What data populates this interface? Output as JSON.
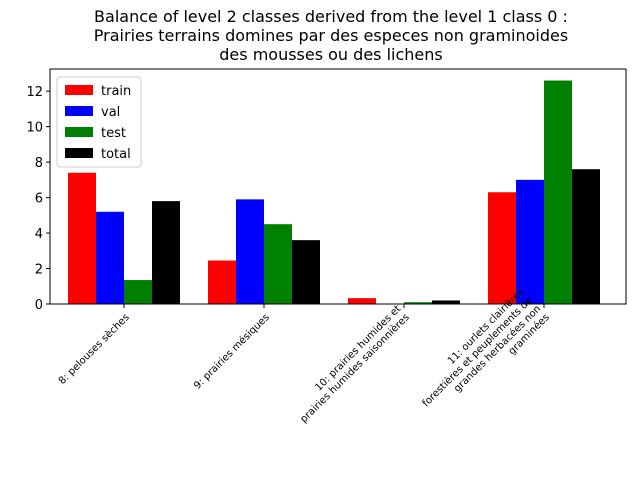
{
  "chart_data": {
    "type": "bar",
    "title_lines": [
      "Balance of level 2 classes derived from the level 1 class 0 :",
      "Prairies terrains domines par des especes non graminoides",
      "des mousses ou des lichens"
    ],
    "categories": [
      [
        "8: pelouses sèches"
      ],
      [
        "9: prairies mésiques"
      ],
      [
        "10: prairies humides et",
        "prairies humides saisonnières"
      ],
      [
        "11: ourlets clairières",
        "forestières et peuplements de",
        "grandes herbacées non",
        "graminées"
      ]
    ],
    "series": [
      {
        "name": "train",
        "color": "#ff0000",
        "values": [
          7.4,
          2.45,
          0.33,
          6.3
        ]
      },
      {
        "name": "val",
        "color": "#0000ff",
        "values": [
          5.2,
          5.9,
          0.0,
          7.0
        ]
      },
      {
        "name": "test",
        "color": "#008000",
        "values": [
          1.35,
          4.5,
          0.1,
          12.6
        ]
      },
      {
        "name": "total",
        "color": "#000000",
        "values": [
          5.8,
          3.6,
          0.2,
          7.6
        ]
      }
    ],
    "yticks": [
      0,
      2,
      4,
      6,
      8,
      10,
      12
    ],
    "ylim": [
      0,
      13.25
    ],
    "xlabel": "",
    "ylabel": "",
    "legend_position": "top-left",
    "grid": false
  }
}
